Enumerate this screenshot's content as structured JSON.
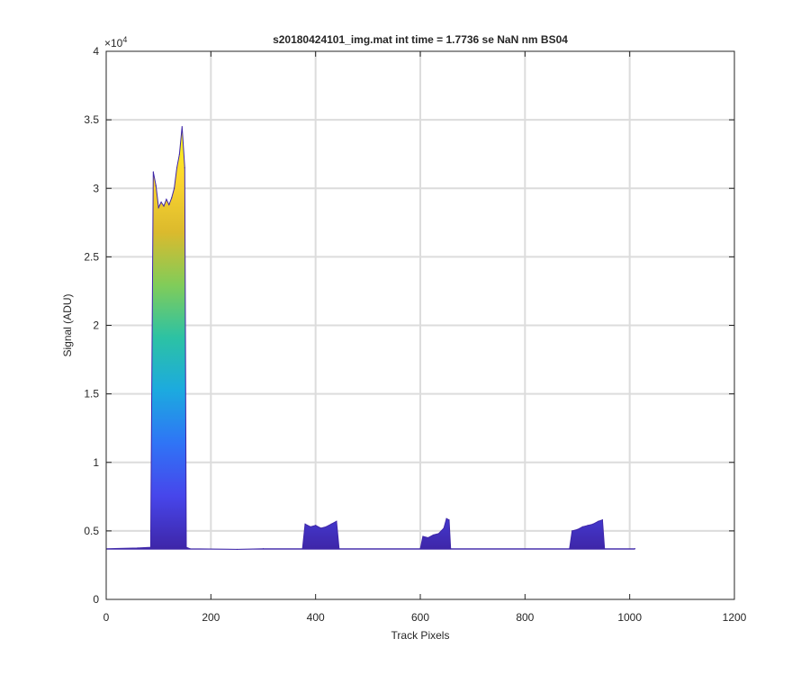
{
  "chart_data": {
    "type": "area",
    "title": "s20180424101_img.mat int time = 1.7736 se  NaN nm BS04",
    "xlabel": "Track Pixels",
    "ylabel": "Signal (ADU)",
    "xlim": [
      0,
      1200
    ],
    "ylim": [
      0,
      40000
    ],
    "y_exponent_label": "×10",
    "y_exponent_power": "4",
    "xticks": [
      0,
      200,
      400,
      600,
      800,
      1000,
      1200
    ],
    "xtick_labels": [
      "0",
      "200",
      "400",
      "600",
      "800",
      "1000",
      "1200"
    ],
    "yticks": [
      0,
      5000,
      10000,
      15000,
      20000,
      25000,
      30000,
      35000,
      40000
    ],
    "ytick_labels": [
      "0",
      "0.5",
      "1",
      "1.5",
      "2",
      "2.5",
      "3",
      "3.5",
      "4"
    ],
    "grid": true,
    "colormap": [
      "#3e26a8",
      "#4746eb",
      "#2f74f6",
      "#1caadf",
      "#2cc2a4",
      "#81cc59",
      "#dbba2d",
      "#fcd52f",
      "#f9fb15"
    ],
    "baseline_value": 3700,
    "colormap_max_value": 34500,
    "x": [
      0,
      60,
      85,
      90,
      95,
      100,
      105,
      110,
      115,
      120,
      125,
      130,
      135,
      140,
      145,
      150,
      153,
      160,
      250,
      300,
      375,
      380,
      390,
      400,
      410,
      420,
      430,
      440,
      445,
      600,
      605,
      615,
      625,
      635,
      645,
      650,
      655,
      658,
      885,
      890,
      900,
      910,
      920,
      930,
      940,
      948,
      952,
      1010
    ],
    "y": [
      3700,
      3750,
      3800,
      31200,
      30200,
      28600,
      29000,
      28700,
      29200,
      28800,
      29300,
      30000,
      31500,
      32500,
      34500,
      31500,
      3800,
      3700,
      3650,
      3700,
      3700,
      5500,
      5300,
      5400,
      5200,
      5300,
      5500,
      5700,
      3700,
      3700,
      4600,
      4500,
      4700,
      4800,
      5200,
      5900,
      5800,
      3700,
      3700,
      5000,
      5100,
      5300,
      5400,
      5500,
      5700,
      5800,
      3700,
      3700
    ]
  }
}
